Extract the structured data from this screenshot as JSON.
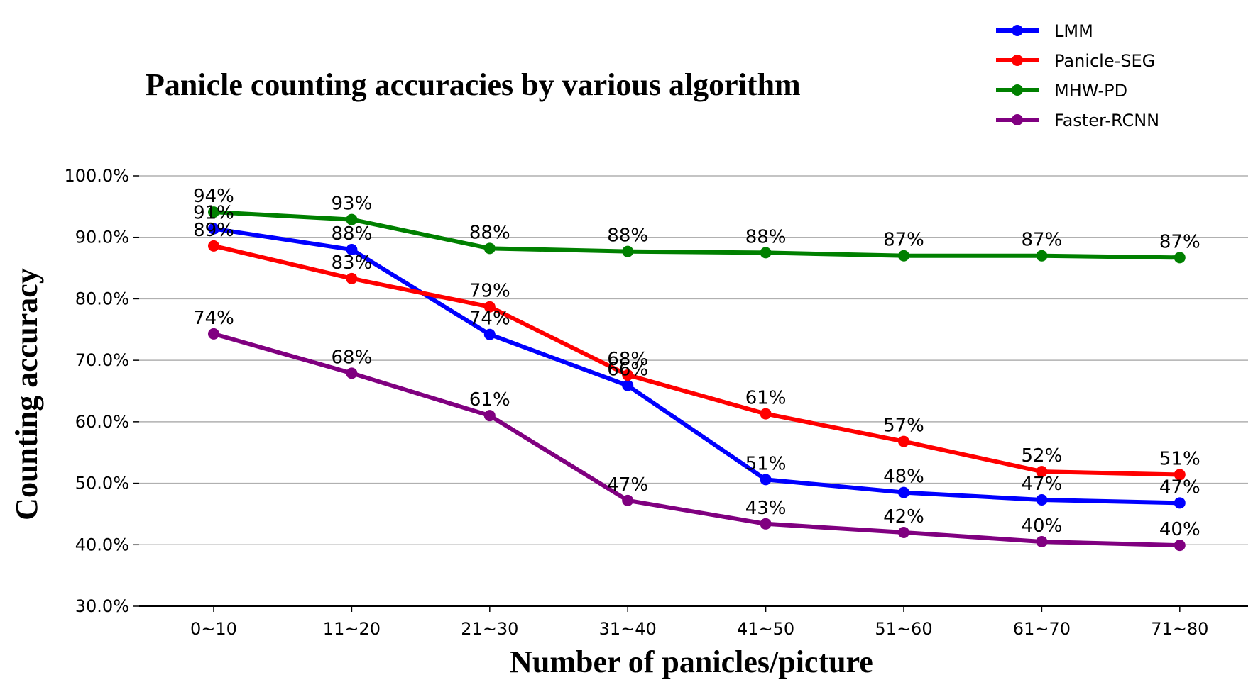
{
  "chart_data": {
    "type": "line",
    "title": "Panicle counting accuracies by various algorithm",
    "xlabel": "Number of panicles/picture",
    "ylabel": "Counting accuracy",
    "categories": [
      "0~10",
      "11~20",
      "21~30",
      "31~40",
      "41~50",
      "51~60",
      "61~70",
      "71~80"
    ],
    "ylim": [
      30,
      100
    ],
    "yticks": [
      "30.0%",
      "40.0%",
      "50.0%",
      "60.0%",
      "70.0%",
      "80.0%",
      "90.0%",
      "100.0%"
    ],
    "grid": "horizontal",
    "legend_position": "top-right",
    "series": [
      {
        "name": "LMM",
        "color": "#0000ff",
        "values": [
          91.4,
          88.0,
          74.2,
          65.9,
          50.6,
          48.5,
          47.3,
          46.8
        ],
        "labels": [
          "91%",
          "88%",
          "74%",
          "66%",
          "51%",
          "48%",
          "47%",
          "47%"
        ]
      },
      {
        "name": "Panicle-SEG",
        "color": "#ff0000",
        "values": [
          88.6,
          83.3,
          78.7,
          67.6,
          61.3,
          56.8,
          51.9,
          51.4
        ],
        "labels": [
          "89%",
          "83%",
          "79%",
          "68%",
          "61%",
          "57%",
          "52%",
          "51%"
        ]
      },
      {
        "name": "MHW-PD",
        "color": "#008000",
        "values": [
          94.1,
          92.9,
          88.2,
          87.7,
          87.5,
          87.0,
          87.0,
          86.7
        ],
        "labels": [
          "94%",
          "93%",
          "88%",
          "88%",
          "88%",
          "87%",
          "87%",
          "87%"
        ]
      },
      {
        "name": "Faster-RCNN",
        "color": "#800080",
        "values": [
          74.3,
          67.9,
          61.0,
          47.2,
          43.4,
          42.0,
          40.5,
          39.9
        ],
        "labels": [
          "74%",
          "68%",
          "61%",
          "47%",
          "43%",
          "42%",
          "40%",
          "40%"
        ]
      }
    ]
  }
}
